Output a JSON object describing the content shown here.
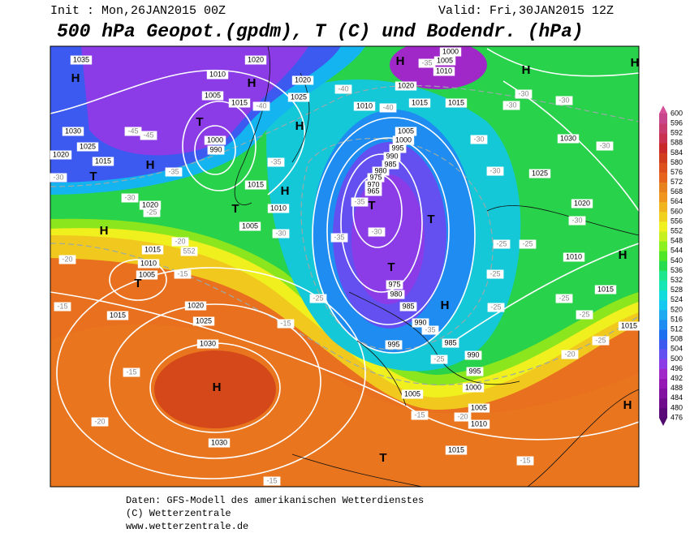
{
  "header": {
    "init": "Init : Mon,26JAN2015 00Z",
    "valid": "Valid: Fri,30JAN2015 12Z",
    "title": "500 hPa Geopot.(gpdm), T (C) und Bodendr. (hPa)"
  },
  "map": {
    "labels": [
      "1035",
      "H",
      "1020",
      "1010",
      "H",
      "1020",
      "1005",
      "1015",
      "-40",
      "1025",
      "H",
      "T",
      "1000",
      "990",
      "-45",
      "-45",
      "1030",
      "1025",
      "1020",
      "1015",
      "H",
      "T",
      "-30",
      "-35",
      "-35",
      "1015",
      "H",
      "1010",
      "-30",
      "1020",
      "-25",
      "T",
      "1005",
      "H",
      "-30",
      "-20",
      "1015",
      "552",
      "-20",
      "1010",
      "1005",
      "-15",
      "T",
      "-15",
      "1015",
      "1020",
      "1025",
      "-15",
      "-25",
      "1030",
      "H",
      "-15",
      "-20",
      "1030",
      "-15",
      "-40",
      "1010",
      "-40",
      "1005",
      "1000",
      "995",
      "990",
      "985",
      "980",
      "975",
      "970",
      "965",
      "T",
      "-35",
      "-30",
      "-35",
      "T",
      "T",
      "975",
      "980",
      "985",
      "H",
      "990",
      "-35",
      "995",
      "985",
      "-25",
      "990",
      "995",
      "1000",
      "1005",
      "1005",
      "-15",
      "-20",
      "1010",
      "1015",
      "T",
      "-15",
      "-25",
      "-25",
      "-25",
      "1010",
      "1015",
      "-25",
      "-25",
      "-25",
      "-20",
      "H",
      "1030",
      "-30",
      "1025",
      "-30",
      "-30",
      "1020",
      "-30",
      "-25",
      "H",
      "1015",
      "H",
      "H",
      "-30",
      "-30",
      "1015",
      "1015",
      "1005",
      "1000",
      "1010",
      "-35",
      "H",
      "1020",
      "-30"
    ]
  },
  "colorbar": {
    "levels": [
      476,
      480,
      484,
      488,
      492,
      496,
      500,
      504,
      508,
      512,
      516,
      520,
      524,
      528,
      532,
      536,
      540,
      544,
      548,
      552,
      556,
      560,
      564,
      568,
      572,
      576,
      580,
      584,
      588,
      592,
      596,
      600
    ],
    "colors": [
      "#5a0a78",
      "#6e0c8c",
      "#8210a0",
      "#9618b4",
      "#a028c8",
      "#8c3ce6",
      "#6450f0",
      "#3c5af0",
      "#1e6ef0",
      "#1e8cf0",
      "#1eaaf0",
      "#14c8f0",
      "#14dcdc",
      "#14e6b4",
      "#1ee68c",
      "#28dc50",
      "#50e628",
      "#8cf01e",
      "#c8f01e",
      "#f0f01e",
      "#f0d21e",
      "#f0b41e",
      "#f0961e",
      "#e8821e",
      "#e6641e",
      "#dc501e",
      "#d23c1e",
      "#c82828",
      "#c83250",
      "#c83c6e",
      "#c8468c"
    ]
  },
  "footer": {
    "lines": [
      "Daten: GFS-Modell des amerikanischen Wetterdienstes",
      "(C) Wetterzentrale",
      "www.wetterzentrale.de"
    ]
  }
}
